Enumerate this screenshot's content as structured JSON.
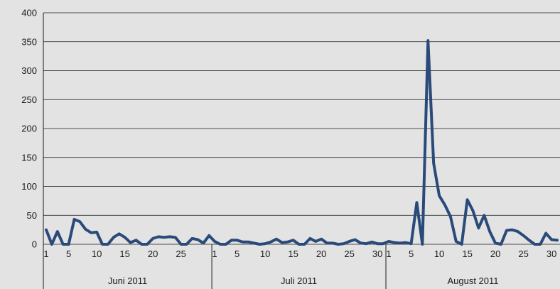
{
  "colors": {
    "background": "#e3e3e3",
    "line": "#2a4a7a",
    "grid": "#1a1a1a",
    "text": "#1a1a1a"
  },
  "chart_data": {
    "type": "line",
    "title": "",
    "xlabel": "",
    "ylabel": "",
    "ylim": [
      0,
      400
    ],
    "y_ticks": [
      "0",
      "50",
      "100",
      "150",
      "200",
      "250",
      "300",
      "350",
      "400"
    ],
    "grid": true,
    "legend": "none",
    "months": [
      {
        "label": "Juni 2011",
        "days": 30,
        "tick_labels": [
          {
            "day": 1,
            "text": "1"
          },
          {
            "day": 5,
            "text": "5"
          },
          {
            "day": 10,
            "text": "10"
          },
          {
            "day": 15,
            "text": "15"
          },
          {
            "day": 20,
            "text": "20"
          },
          {
            "day": 25,
            "text": "25"
          }
        ]
      },
      {
        "label": "Juli 2011",
        "days": 31,
        "tick_labels": [
          {
            "day": 1,
            "text": "1"
          },
          {
            "day": 5,
            "text": "5"
          },
          {
            "day": 10,
            "text": "10"
          },
          {
            "day": 15,
            "text": "15"
          },
          {
            "day": 20,
            "text": "20"
          },
          {
            "day": 25,
            "text": "25"
          },
          {
            "day": 30,
            "text": "30"
          }
        ]
      },
      {
        "label": "August 2011",
        "days": 31,
        "tick_labels": [
          {
            "day": 1,
            "text": "1"
          },
          {
            "day": 5,
            "text": "5"
          },
          {
            "day": 10,
            "text": "10"
          },
          {
            "day": 15,
            "text": "15"
          },
          {
            "day": 20,
            "text": "20"
          },
          {
            "day": 25,
            "text": "25"
          },
          {
            "day": 30,
            "text": "30"
          }
        ]
      }
    ],
    "series": [
      {
        "values": [
          25,
          0,
          22,
          0,
          0,
          43,
          39,
          26,
          20,
          21,
          0,
          0,
          12,
          18,
          12,
          3,
          7,
          0,
          0,
          10,
          13,
          12,
          13,
          12,
          0,
          0,
          10,
          8,
          2,
          15,
          5,
          0,
          0,
          7,
          7,
          4,
          4,
          2,
          0,
          1,
          4,
          9,
          3,
          4,
          7,
          0,
          0,
          10,
          5,
          9,
          2,
          2,
          0,
          1,
          5,
          8,
          2,
          1,
          4,
          1,
          1,
          5,
          3,
          2,
          3,
          1,
          72,
          0,
          352,
          140,
          84,
          68,
          48,
          5,
          0,
          77,
          58,
          28,
          50,
          22,
          2,
          0,
          24,
          25,
          22,
          15,
          7,
          0,
          0,
          19,
          8,
          7
        ]
      }
    ]
  }
}
